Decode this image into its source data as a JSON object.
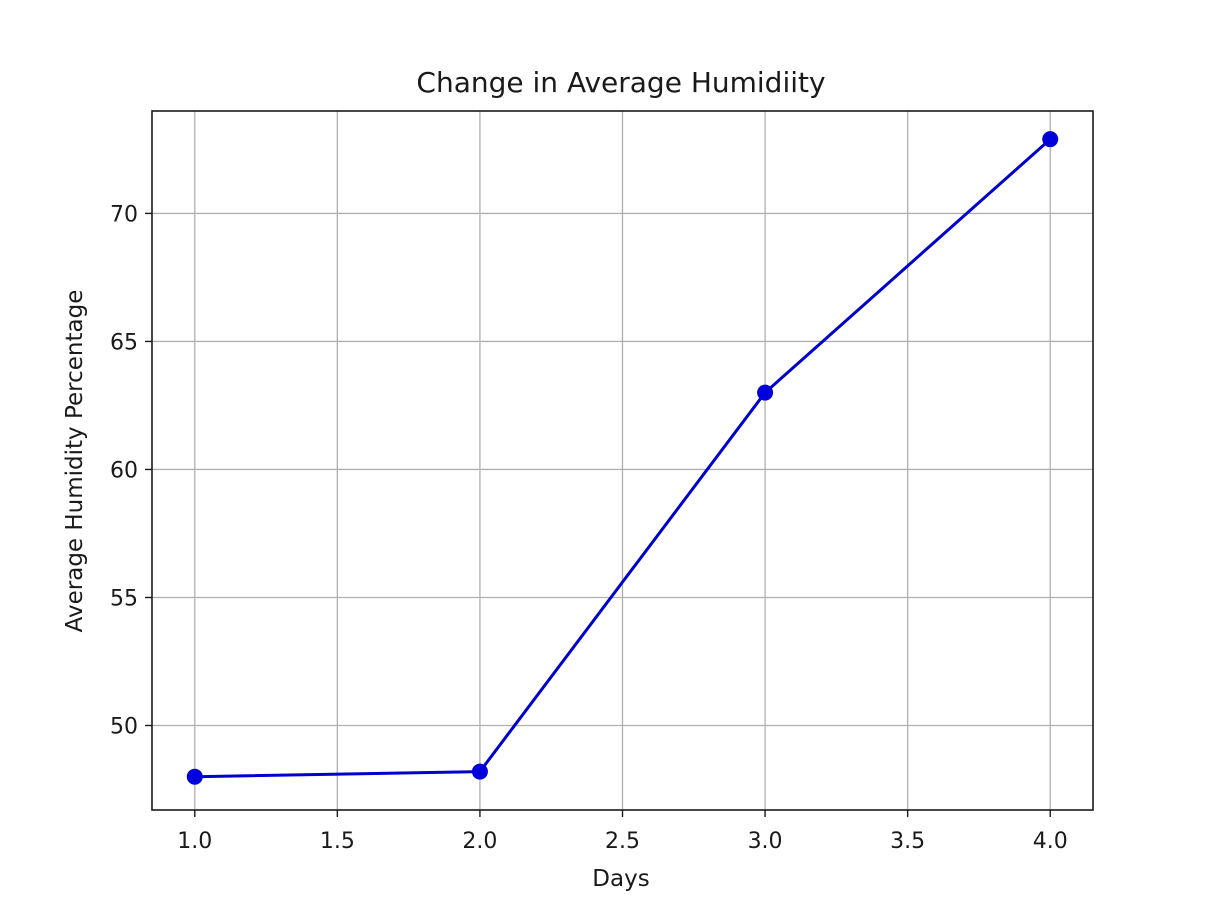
{
  "chart_data": {
    "type": "line",
    "title": "Change in Average Humidiity",
    "xlabel": "Days",
    "ylabel": "Average Humidity Percentage",
    "xlim": [
      0.85,
      4.15
    ],
    "ylim": [
      46.7,
      74.0
    ],
    "x_ticks": [
      1.0,
      1.5,
      2.0,
      2.5,
      3.0,
      3.5,
      4.0
    ],
    "x_tick_labels": [
      "1.0",
      "1.5",
      "2.0",
      "2.5",
      "3.0",
      "3.5",
      "4.0"
    ],
    "y_ticks": [
      50,
      55,
      60,
      65,
      70
    ],
    "y_tick_labels": [
      "50",
      "55",
      "60",
      "65",
      "70"
    ],
    "grid": true,
    "legend": "none",
    "series": [
      {
        "color": "#0000cc",
        "marker_color": "#0000dd",
        "x": [
          1.0,
          2.0,
          3.0,
          4.0
        ],
        "y": [
          48.0,
          48.2,
          63.0,
          72.9
        ]
      }
    ]
  }
}
